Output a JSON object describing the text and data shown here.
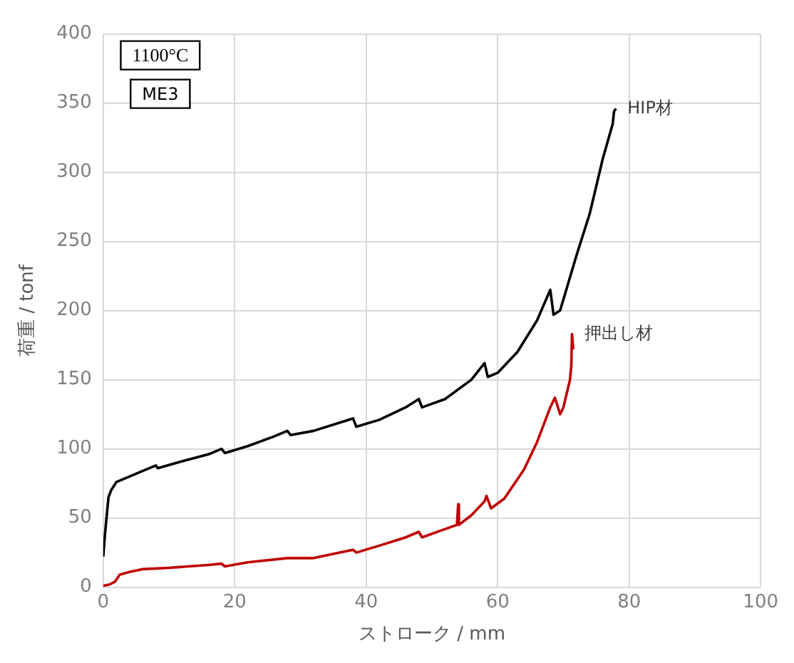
{
  "chart_data": {
    "type": "line",
    "xlabel": "ストローク / mm",
    "ylabel": "荷重 / tonf",
    "annotations": [
      "1100°C",
      "ME3"
    ],
    "xlim": [
      0,
      100
    ],
    "xticks": [
      0,
      20,
      40,
      60,
      80,
      100
    ],
    "ylim": [
      0,
      400
    ],
    "yticks": [
      0,
      50,
      100,
      150,
      200,
      250,
      300,
      350,
      400
    ],
    "grid": true,
    "legend": false,
    "marker": "none",
    "line_style": "solid",
    "series": [
      {
        "name": "HIP材",
        "color": "#000000",
        "x": [
          0,
          0.3,
          0.8,
          1.2,
          2,
          4,
          6,
          8,
          8.3,
          12,
          16,
          18,
          18.5,
          22,
          26,
          28,
          28.5,
          32,
          36,
          38,
          38.5,
          42,
          46,
          48,
          48.5,
          52,
          56,
          58,
          58.5,
          60,
          63,
          66,
          68,
          68.5,
          69.5,
          72,
          74,
          76,
          77.5,
          77.7,
          78
        ],
        "values": [
          22,
          40,
          65,
          70,
          76,
          80,
          84,
          88,
          86,
          91,
          96,
          100,
          97,
          102,
          109,
          113,
          110,
          113,
          119,
          122,
          116,
          121,
          130,
          136,
          130,
          136,
          150,
          162,
          152,
          155,
          170,
          193,
          215,
          197,
          200,
          240,
          270,
          310,
          335,
          344,
          346
        ]
      },
      {
        "name": "押出し材",
        "color": "#c00000",
        "x": [
          0,
          1,
          1.8,
          2.5,
          4,
          6,
          10,
          16,
          18,
          18.5,
          22,
          28,
          32,
          36,
          38,
          38.5,
          42,
          46,
          48,
          48.5,
          52,
          53.8,
          54,
          54.1,
          56,
          58,
          58.3,
          59,
          61,
          64,
          66,
          68,
          68.7,
          69.5,
          70,
          71,
          71.2,
          71.3,
          71.5
        ],
        "values": [
          1,
          2,
          4,
          9,
          11,
          13,
          14,
          16,
          17,
          15,
          18,
          21,
          21,
          25,
          27,
          25,
          30,
          36,
          40,
          36,
          42,
          45,
          60,
          45,
          52,
          62,
          66,
          57,
          64,
          85,
          105,
          130,
          137,
          125,
          130,
          150,
          160,
          183,
          172
        ]
      }
    ]
  }
}
